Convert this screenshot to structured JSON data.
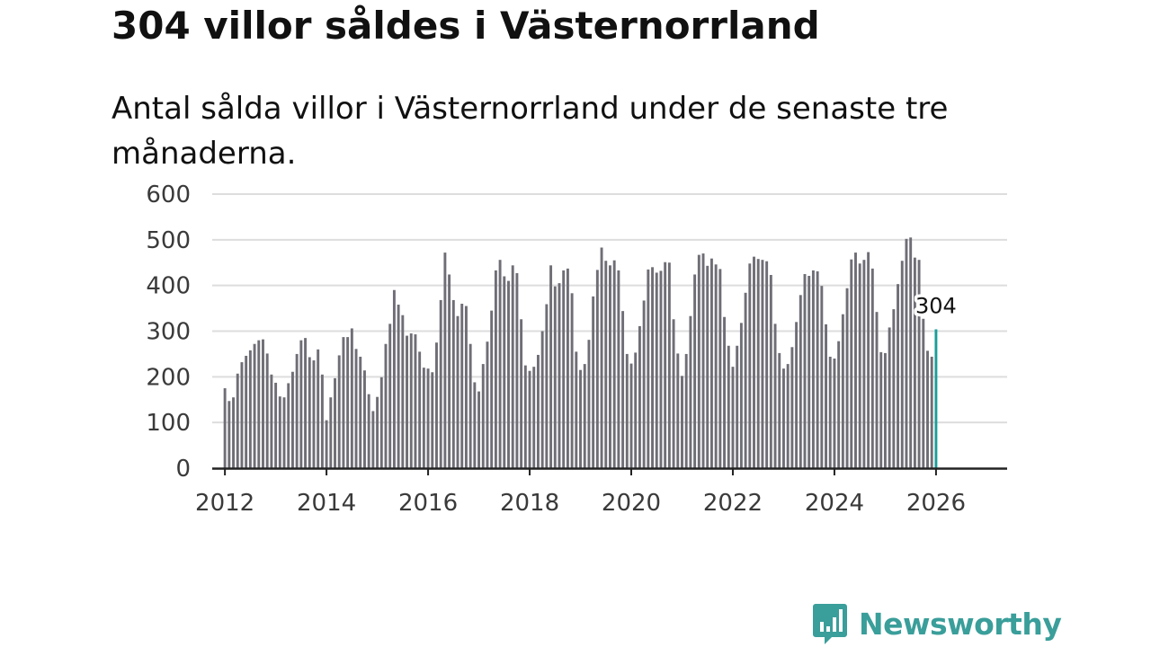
{
  "title": "304 villor såldes i Västernorrland",
  "subtitle": "Antal sålda villor i Västernorrland under de senaste tre månaderna.",
  "brand": {
    "name": "Newsworthy",
    "color": "#3a9e9a"
  },
  "colors": {
    "bar": "#6f6e76",
    "highlight": "#1a9e9a",
    "grid": "#dddddd",
    "axis": "#222222"
  },
  "chart_data": {
    "type": "bar",
    "title": "304 villor såldes i Västernorrland",
    "subtitle": "Antal sålda villor i Västernorrland under de senaste tre månaderna.",
    "xlabel": "",
    "ylabel": "",
    "x_start": "2012-01",
    "x_range": [
      2011.75,
      2027.4
    ],
    "ylim": [
      0,
      600
    ],
    "yticks": [
      0,
      100,
      200,
      300,
      400,
      500,
      600
    ],
    "xticks": [
      2012,
      2014,
      2016,
      2018,
      2020,
      2022,
      2024,
      2026
    ],
    "grid": true,
    "values": [
      175,
      147,
      155,
      207,
      232,
      246,
      258,
      272,
      280,
      282,
      251,
      205,
      187,
      157,
      155,
      186,
      211,
      250,
      280,
      285,
      243,
      236,
      260,
      205,
      105,
      155,
      197,
      247,
      287,
      287,
      306,
      261,
      244,
      214,
      162,
      125,
      156,
      199,
      272,
      316,
      390,
      358,
      335,
      290,
      295,
      293,
      255,
      220,
      218,
      210,
      275,
      368,
      472,
      424,
      368,
      333,
      360,
      355,
      272,
      188,
      168,
      228,
      277,
      345,
      433,
      456,
      420,
      410,
      444,
      427,
      326,
      225,
      213,
      222,
      248,
      300,
      359,
      444,
      398,
      405,
      433,
      437,
      383,
      255,
      215,
      228,
      281,
      376,
      434,
      483,
      454,
      444,
      455,
      433,
      344,
      250,
      229,
      253,
      311,
      367,
      435,
      440,
      428,
      432,
      451,
      450,
      326,
      251,
      202,
      250,
      333,
      424,
      467,
      470,
      443,
      459,
      446,
      436,
      331,
      268,
      222,
      268,
      318,
      384,
      448,
      463,
      458,
      456,
      453,
      423,
      316,
      252,
      218,
      228,
      265,
      320,
      379,
      425,
      421,
      433,
      431,
      399,
      315,
      244,
      240,
      278,
      337,
      394,
      457,
      472,
      448,
      456,
      473,
      437,
      342,
      254,
      252,
      308,
      348,
      403,
      454,
      502,
      505,
      461,
      456,
      327,
      257,
      244,
      304
    ],
    "highlight": {
      "label": "304",
      "value": 304,
      "date": "2026-03"
    }
  }
}
